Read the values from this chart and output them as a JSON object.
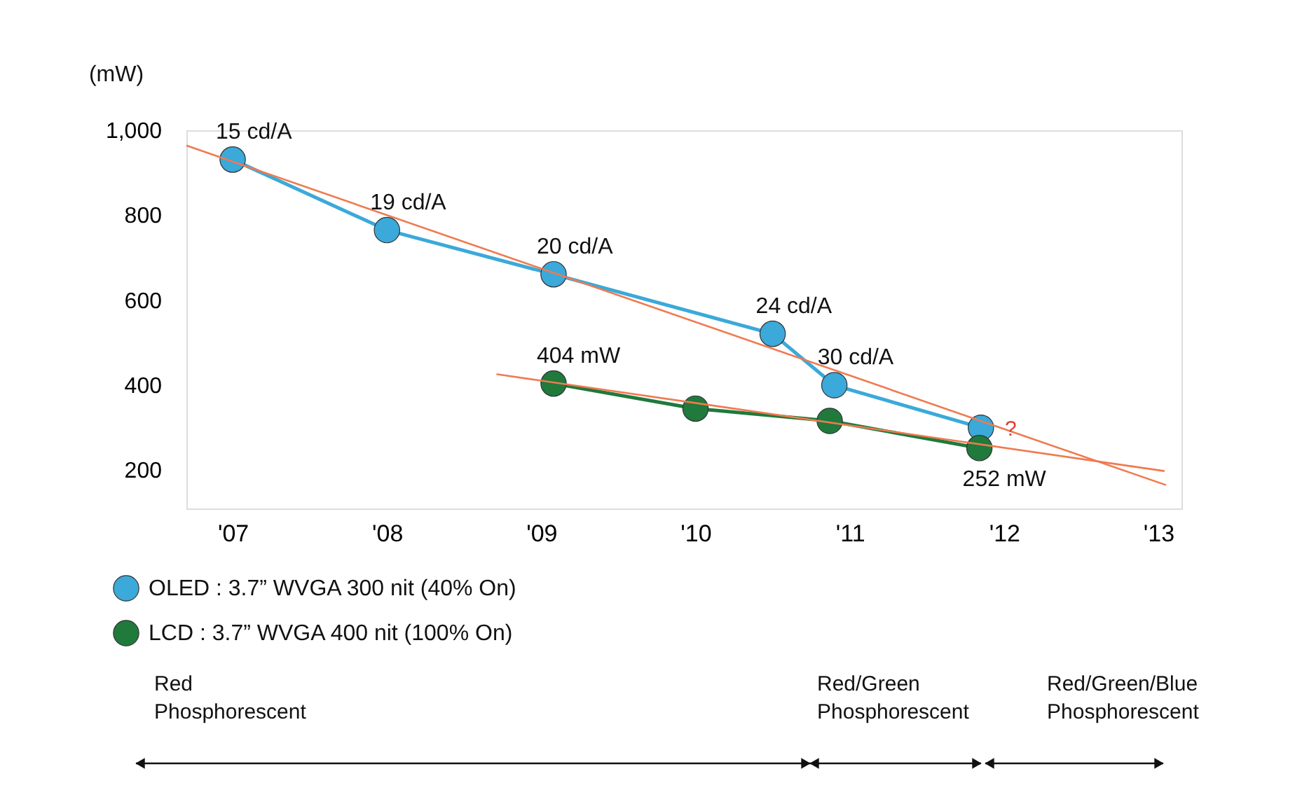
{
  "chart_data": {
    "type": "line",
    "ylabel": "(mW)",
    "xlim": [
      2006.7,
      2013.15
    ],
    "xticks": [
      {
        "value": 2007,
        "label": "'07"
      },
      {
        "value": 2008,
        "label": "'08"
      },
      {
        "value": 2009,
        "label": "'09"
      },
      {
        "value": 2010,
        "label": "'10"
      },
      {
        "value": 2011,
        "label": "'11"
      },
      {
        "value": 2012,
        "label": "'12"
      },
      {
        "value": 2013,
        "label": "'13"
      }
    ],
    "ylim": [
      110,
      1000
    ],
    "yticks": [
      200,
      400,
      600,
      800,
      {
        "value": 1000,
        "label": "1,000"
      }
    ],
    "grid": false,
    "legend": "bottom left",
    "line_style": "solid",
    "marker": "circle",
    "series": [
      {
        "name": "OLED : 3.7” WVGA 300 nit (40% On)",
        "color": "#3ba9d9",
        "x": [
          2007,
          2008,
          2009.08,
          2010.5,
          2010.9,
          2011.85
        ],
        "values": [
          931,
          765,
          661,
          521,
          400,
          300
        ]
      },
      {
        "name": "LCD : 3.7” WVGA 400 nit (100% On)",
        "color": "#1f7a3c",
        "x": [
          2009.08,
          2010.0,
          2010.87,
          2011.84
        ],
        "values": [
          404,
          345,
          316,
          252
        ]
      },
      {
        "color": "#f07a50",
        "marker": "none",
        "x": [
          2006.7,
          2013.05
        ],
        "values": [
          964,
          165
        ]
      },
      {
        "color": "#f07a50",
        "marker": "none",
        "x": [
          2008.71,
          2013.04
        ],
        "values": [
          426,
          198
        ]
      }
    ],
    "annotations": [
      {
        "text": "15 cd/A",
        "x": 2007,
        "y": 931
      },
      {
        "text": "19 cd/A",
        "x": 2008,
        "y": 765
      },
      {
        "text": "20 cd/A",
        "x": 2009.08,
        "y": 661
      },
      {
        "text": "24 cd/A",
        "x": 2010.5,
        "y": 521
      },
      {
        "text": "30 cd/A",
        "x": 2010.9,
        "y": 400
      },
      {
        "text": "404 mW",
        "x": 2009.08,
        "y": 404
      },
      {
        "text": "252 mW",
        "x": 2011.84,
        "y": 252
      },
      "?",
      "Red Phosphorescent",
      "Red/Green Phosphorescent",
      "Red/Green/Blue Phosphorescent"
    ]
  }
}
